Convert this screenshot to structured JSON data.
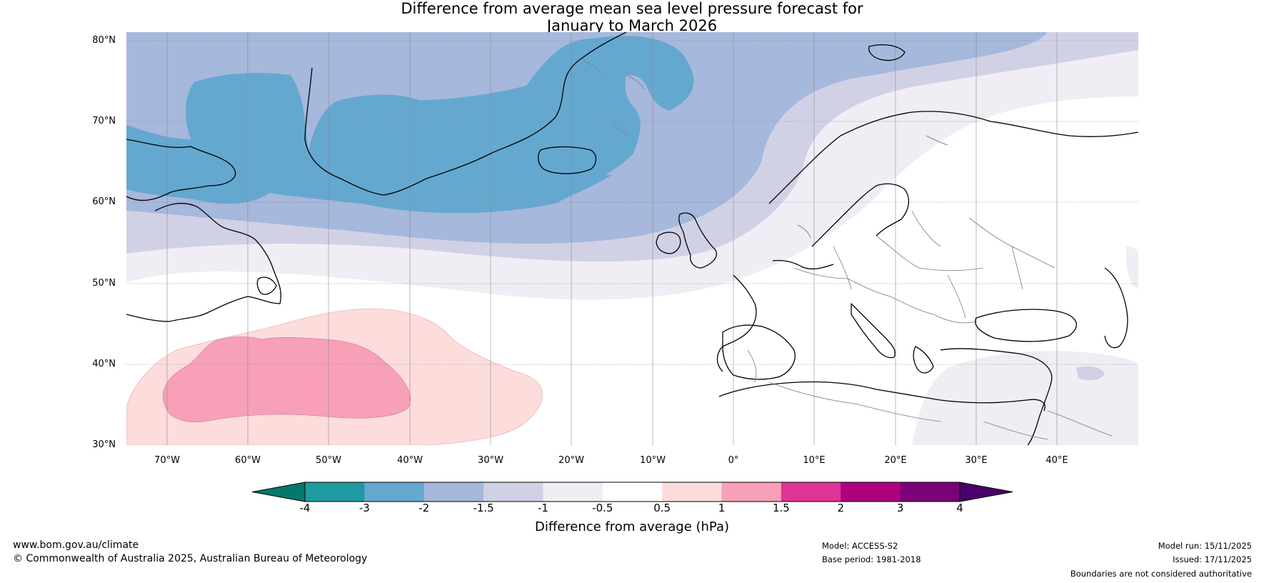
{
  "title": {
    "line1": "Difference from average mean sea level pressure forecast for",
    "line2": "January to March 2026"
  },
  "map": {
    "lat_labels": [
      "80°N",
      "70°N",
      "60°N",
      "50°N",
      "40°N",
      "30°N"
    ],
    "lon_labels": [
      "70°W",
      "60°W",
      "50°W",
      "40°W",
      "30°W",
      "20°W",
      "10°W",
      "0°",
      "10°E",
      "20°E",
      "30°E",
      "40°E"
    ],
    "extent": {
      "lon_min": -75,
      "lon_max": 50,
      "lat_min": 30,
      "lat_max": 81
    }
  },
  "colorbar": {
    "label": "Difference from average (hPa)",
    "ticks": [
      "-4",
      "-3",
      "-2",
      "-1.5",
      "-1",
      "-0.5",
      "0.5",
      "1",
      "1.5",
      "2",
      "3",
      "4"
    ],
    "colors": {
      "below_-4": "#04786a",
      "-4_-3": "#1f9aa0",
      "-3_-2": "#64a8d0",
      "-2_-1.5": "#a6b8db",
      "-1.5_-1": "#d1d1e6",
      "-1_-0.5": "#f0edf4",
      "-0.5_0.5": "#ffffff",
      "0.5_1": "#fddcdc",
      "1_1.5": "#f7a0b8",
      "1.5_2": "#dd3497",
      "2_3": "#ae017e",
      "3_4": "#7a0177",
      "above_4": "#49006a"
    }
  },
  "footer": {
    "url": "www.bom.gov.au/climate",
    "copyright": "© Commonwealth of Australia 2025, Australian Bureau of Meteorology",
    "model": "Model: ACCESS-S2",
    "base_period": "Base period: 1981-2018",
    "model_run": "Model run: 15/11/2025",
    "issued": "Issued: 17/11/2025",
    "disclaimer": "Boundaries are not considered authoritative"
  }
}
